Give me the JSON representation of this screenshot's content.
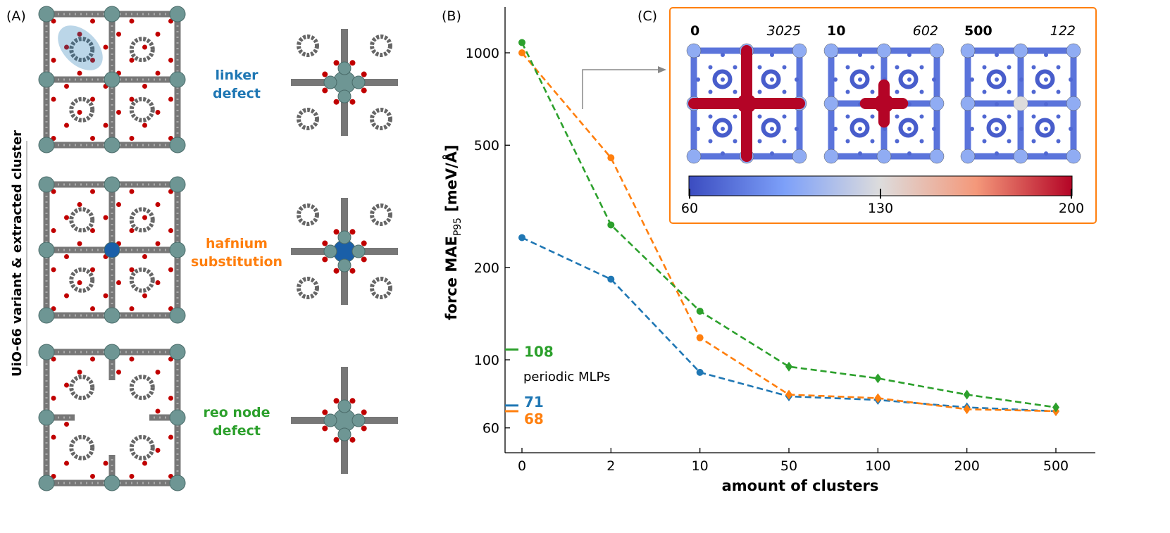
{
  "panels": {
    "a": "(A)",
    "b": "(B)",
    "c": "(C)"
  },
  "left_panel": {
    "vertical_label": "UiO-66 variant & extracted cluster",
    "rows": [
      {
        "line1": "linker",
        "line2": "defect",
        "color": "#1f77b4"
      },
      {
        "line1": "hafnium",
        "line2": "substitution",
        "color": "#ff7f0e"
      },
      {
        "line1": "reo node",
        "line2": "defect",
        "color": "#2ca02c"
      }
    ]
  },
  "chart_data": {
    "type": "line",
    "xlabel": "amount of clusters",
    "ylabel": "force MAE",
    "ylabel_sub": "P95",
    "ylabel_unit": "[meV/Å]",
    "yscale": "log",
    "ylim": [
      50,
      1400
    ],
    "categories": [
      "0",
      "2",
      "10",
      "50",
      "100",
      "200",
      "500"
    ],
    "yticks": [
      60,
      100,
      200,
      500,
      1000
    ],
    "series": [
      {
        "color": "#1f77b4",
        "values": [
          250,
          183,
          91,
          76,
          74,
          70,
          68
        ]
      },
      {
        "color": "#ff7f0e",
        "values": [
          1000,
          455,
          118,
          77,
          75,
          69,
          68
        ]
      },
      {
        "color": "#2ca02c",
        "values": [
          1080,
          275,
          144,
          95,
          87,
          77,
          70
        ]
      }
    ],
    "periodic_mlps": {
      "label": "periodic MLPs",
      "markers": [
        {
          "value": 108,
          "text": "108",
          "color": "#2ca02c"
        },
        {
          "value": 71,
          "text": "71",
          "color": "#1f77b4"
        },
        {
          "value": 68,
          "text": "68",
          "color": "#ff7f0e"
        }
      ]
    }
  },
  "inset": {
    "border_color": "#ff7f0e",
    "maps": [
      {
        "clusters": "0",
        "value": "3025"
      },
      {
        "clusters": "10",
        "value": "602"
      },
      {
        "clusters": "500",
        "value": "122"
      }
    ],
    "colorbar_ticks": [
      "60",
      "130",
      "200"
    ]
  }
}
